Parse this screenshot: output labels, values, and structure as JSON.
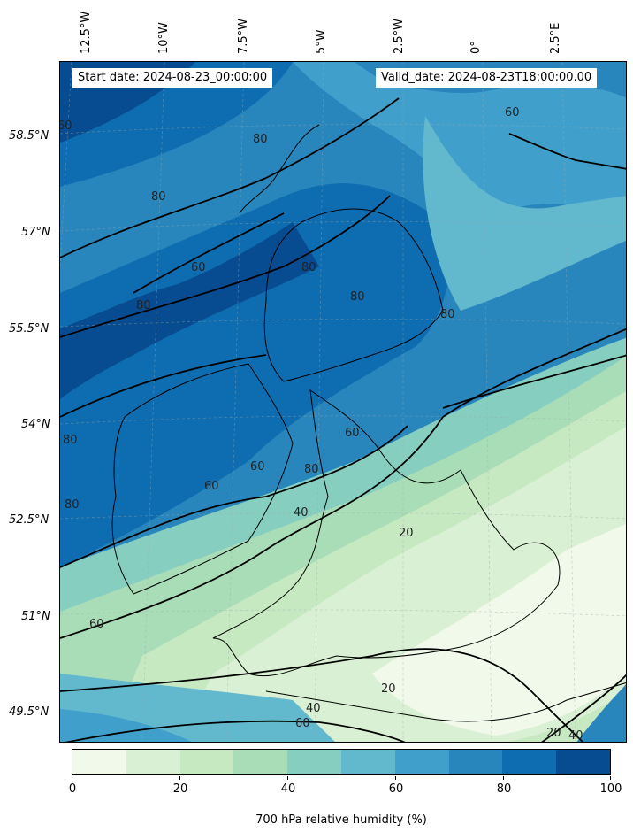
{
  "map": {
    "start_date": "Start date: 2024-08-23_00:00:00",
    "valid_date": "Valid_date: 2024-08-23T18:00:00.00",
    "longitude_labels": [
      "12.5°W",
      "10°W",
      "7.5°W",
      "5°W",
      "2.5°W",
      "0°",
      "2.5°E"
    ],
    "latitude_labels": [
      "58.5°N",
      "57°N",
      "55.5°N",
      "54°N",
      "52.5°N",
      "51°N",
      "49.5°N"
    ],
    "contour_labels": [
      "60",
      "80",
      "80",
      "60",
      "80",
      "80",
      "80",
      "80",
      "60",
      "60",
      "40",
      "20",
      "60",
      "60",
      "40",
      "20",
      "20",
      "40",
      "60",
      "80",
      "80",
      "60",
      "80"
    ]
  },
  "colorbar": {
    "title": "700 hPa relative humidity (%)",
    "ticks": [
      "0",
      "20",
      "40",
      "60",
      "80",
      "100"
    ],
    "colors": [
      "#f1f9ea",
      "#daf0d4",
      "#c6e9c1",
      "#a9ddb8",
      "#86cfc0",
      "#62b8cd",
      "#41a0cb",
      "#2886bd",
      "#0e6cb0",
      "#074b90"
    ]
  }
}
